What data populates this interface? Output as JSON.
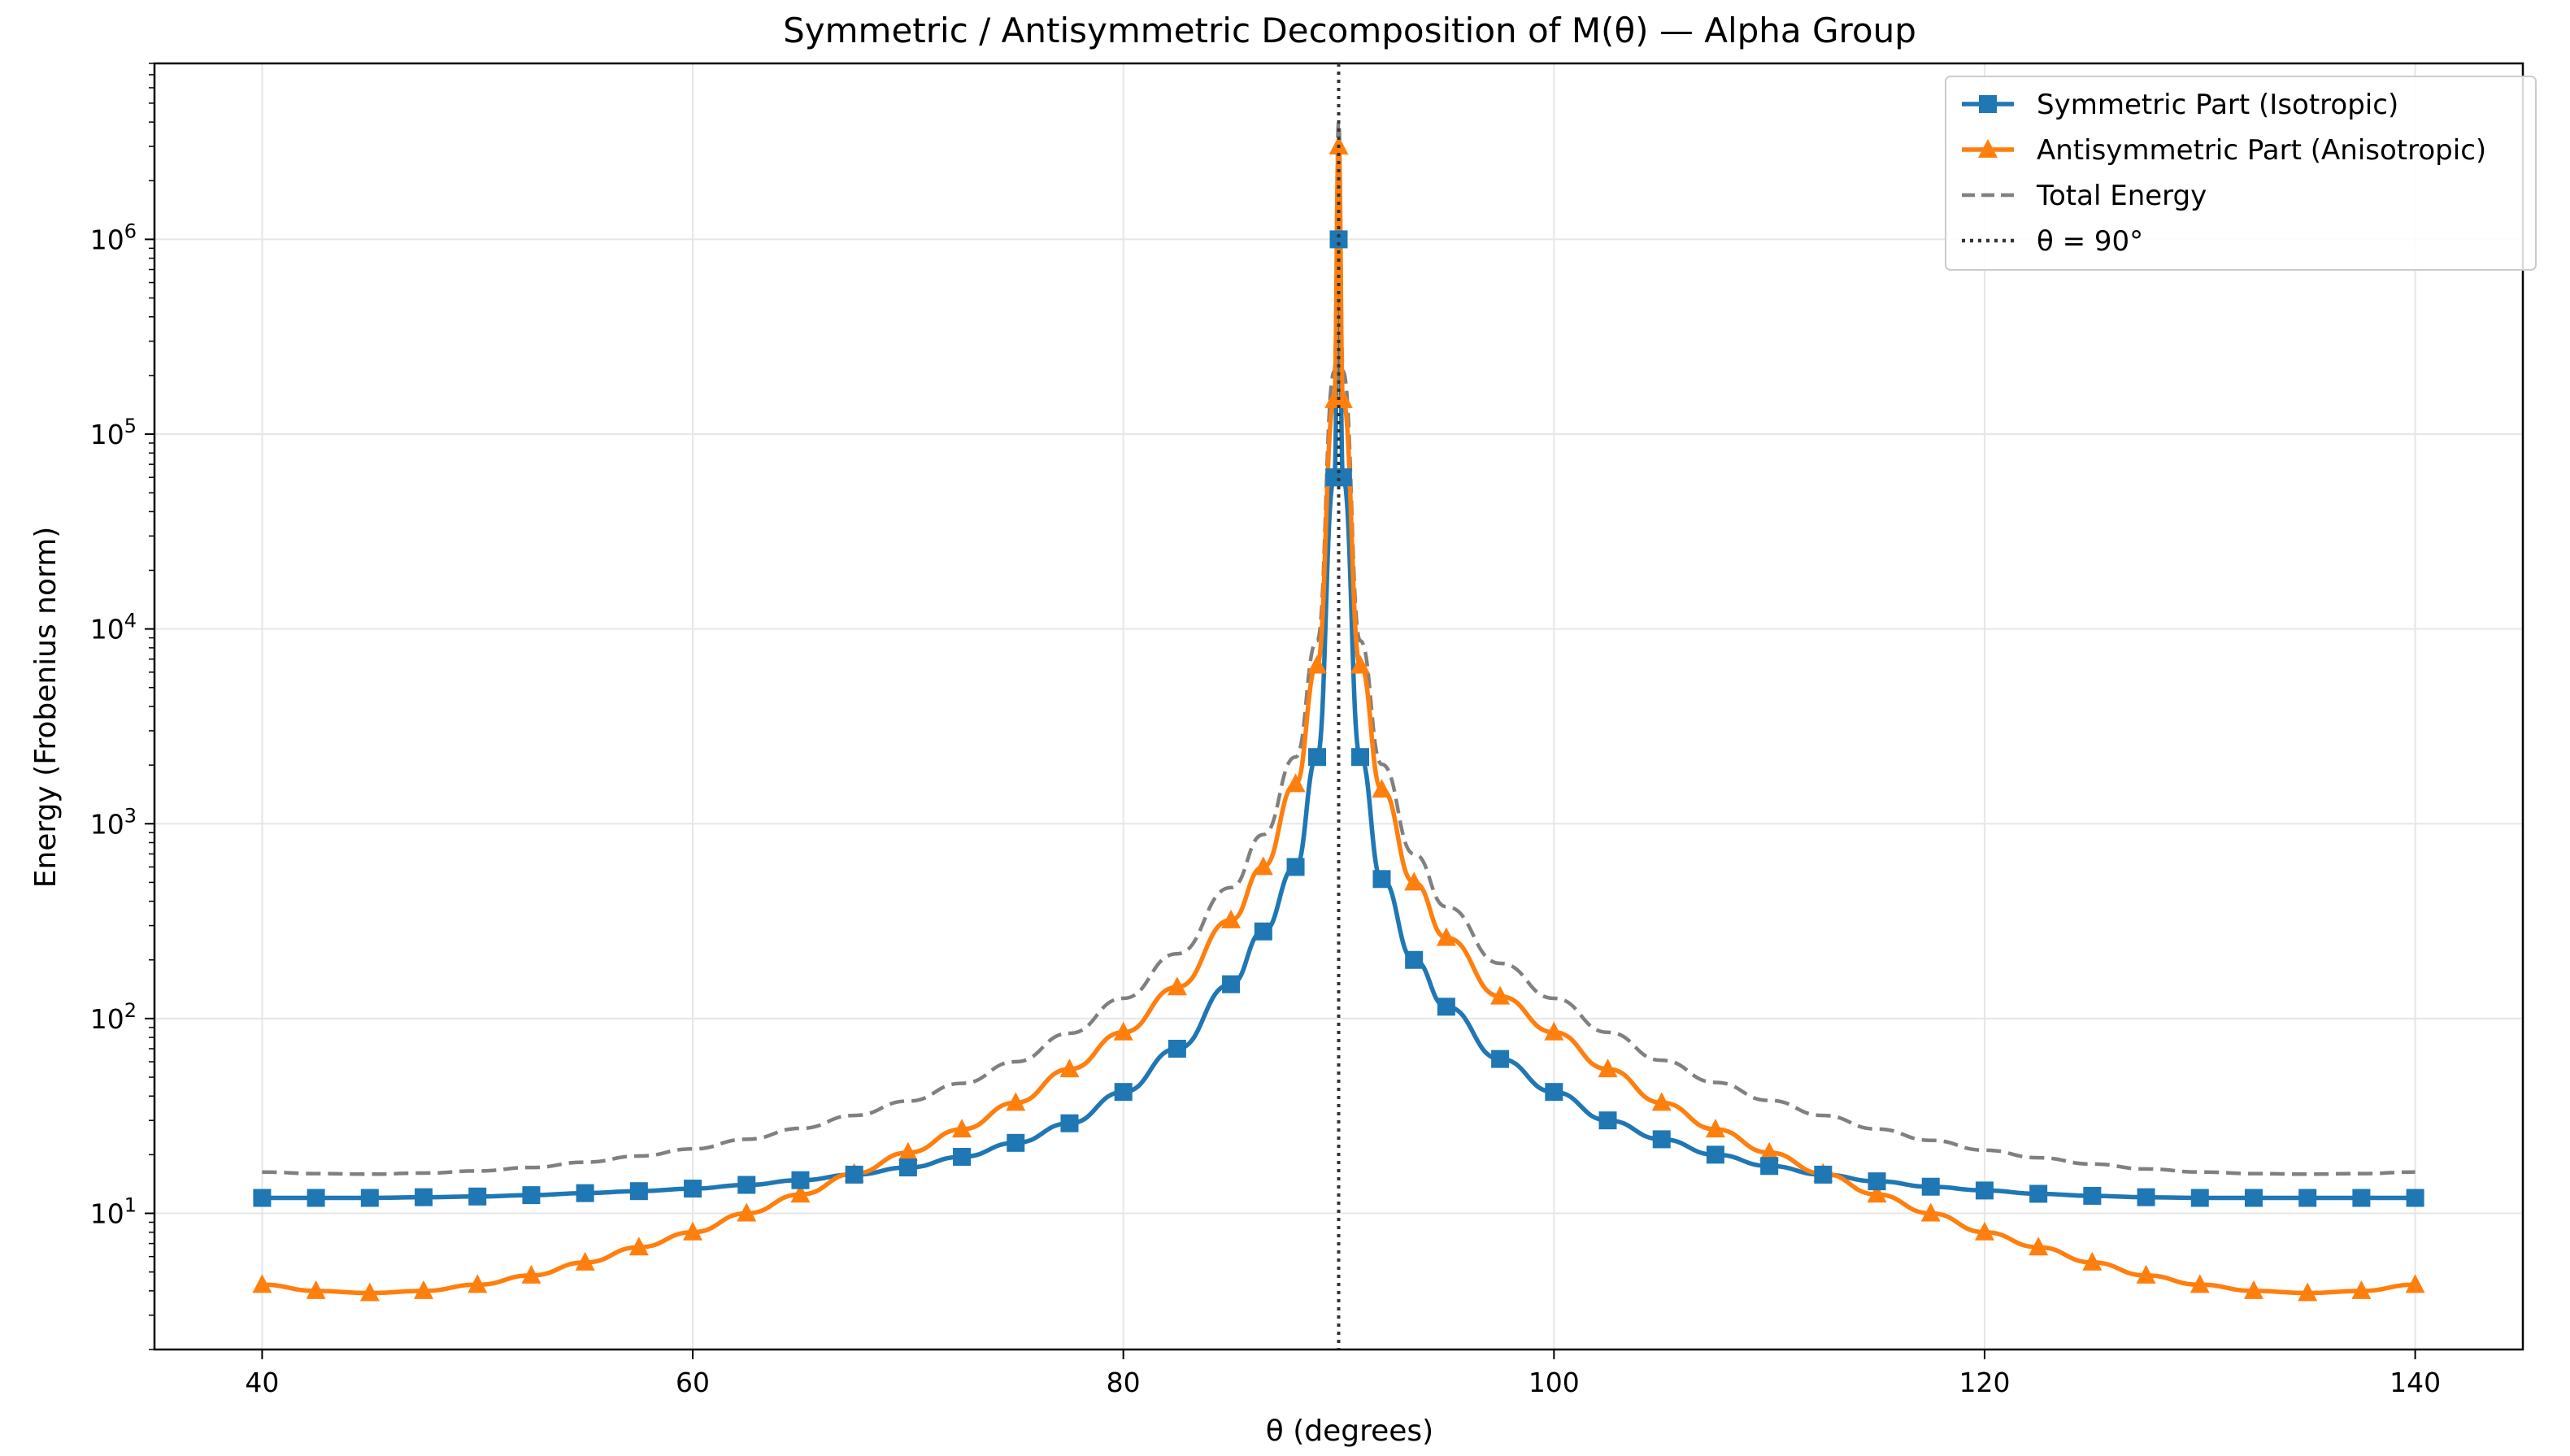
{
  "chart_data": {
    "type": "line",
    "title": "Symmetric / Antisymmetric Decomposition of M(θ) — Alpha Group",
    "xlabel": "θ (degrees)",
    "ylabel": "Energy (Frobenius norm)",
    "xlim": [
      35,
      145
    ],
    "ylim": [
      2,
      8000000
    ],
    "y_scale": "log",
    "grid": true,
    "legend_position": "top-right",
    "x_ticks": [
      40,
      60,
      80,
      100,
      120,
      140
    ],
    "y_ticks": [
      {
        "value": 10,
        "base": "10",
        "exp": "1"
      },
      {
        "value": 100,
        "base": "10",
        "exp": "2"
      },
      {
        "value": 1000,
        "base": "10",
        "exp": "3"
      },
      {
        "value": 10000,
        "base": "10",
        "exp": "4"
      },
      {
        "value": 100000,
        "base": "10",
        "exp": "5"
      },
      {
        "value": 1000000,
        "base": "10",
        "exp": "6"
      }
    ],
    "x": [
      40,
      42.5,
      45,
      47.5,
      50,
      52.5,
      55,
      57.5,
      60,
      62.5,
      65,
      67.5,
      70,
      72.5,
      75,
      77.5,
      80,
      82.5,
      85,
      86.5,
      88,
      89,
      89.8,
      90,
      90.2,
      91,
      92,
      93.5,
      95,
      97.5,
      100,
      102.5,
      105,
      107.5,
      110,
      112.5,
      115,
      117.5,
      120,
      122.5,
      125,
      127.5,
      130,
      132.5,
      135,
      137.5,
      140
    ],
    "series": [
      {
        "name": "Symmetric Part (Isotropic)",
        "color": "#1f77b4",
        "marker": "square",
        "values": [
          12.0,
          12.0,
          12.0,
          12.1,
          12.2,
          12.4,
          12.7,
          13.0,
          13.4,
          14.0,
          14.8,
          15.8,
          17.2,
          19.5,
          23.0,
          29.0,
          42.0,
          70.0,
          150.0,
          280.0,
          600.0,
          2200.0,
          60000.0,
          1000000.0,
          60000.0,
          2200.0,
          520.0,
          200.0,
          115.0,
          62.0,
          42.0,
          30.0,
          24.0,
          20.0,
          17.5,
          15.8,
          14.6,
          13.7,
          13.1,
          12.6,
          12.3,
          12.1,
          12.0,
          12.0,
          12.0,
          12.0,
          12.0
        ]
      },
      {
        "name": "Antisymmetric Part (Anisotropic)",
        "color": "#ff7f0e",
        "marker": "triangle",
        "values": [
          4.3,
          4.0,
          3.9,
          4.0,
          4.3,
          4.8,
          5.6,
          6.7,
          8.0,
          10.0,
          12.5,
          16.0,
          20.5,
          27.0,
          37.0,
          55.0,
          85.0,
          145.0,
          320.0,
          600.0,
          1600.0,
          6500.0,
          150000.0,
          3000000.0,
          150000.0,
          6500.0,
          1500.0,
          500.0,
          260.0,
          130.0,
          85.0,
          55.0,
          37.0,
          27.0,
          20.5,
          16.0,
          12.5,
          10.0,
          8.0,
          6.7,
          5.6,
          4.8,
          4.3,
          4.0,
          3.9,
          4.0,
          4.3
        ]
      },
      {
        "name": "Total Energy",
        "color": "#808080",
        "marker": "none",
        "line": "dashed",
        "values": [
          16.3,
          16.0,
          15.9,
          16.1,
          16.5,
          17.2,
          18.3,
          19.7,
          21.4,
          24.0,
          27.3,
          31.8,
          37.7,
          46.5,
          60.0,
          84.0,
          127.0,
          215.0,
          470.0,
          880.0,
          2200.0,
          8700.0,
          210000.0,
          4000000.0,
          210000.0,
          8700.0,
          2020.0,
          700.0,
          375.0,
          192.0,
          127.0,
          85.0,
          61.0,
          47.0,
          38.0,
          31.8,
          27.1,
          23.7,
          21.1,
          19.3,
          17.9,
          16.9,
          16.3,
          16.0,
          15.9,
          16.0,
          16.3
        ]
      }
    ],
    "vline": {
      "x": 90,
      "label_prefix": "θ = 90",
      "label_suffix": "°",
      "color": "#333333"
    },
    "legend": [
      {
        "label": "Symmetric Part (Isotropic)",
        "color": "#1f77b4",
        "style": "solid",
        "marker": "square"
      },
      {
        "label": "Antisymmetric Part (Anisotropic)",
        "color": "#ff7f0e",
        "style": "solid",
        "marker": "triangle"
      },
      {
        "label": "Total Energy",
        "color": "#808080",
        "style": "dashed",
        "marker": "none"
      },
      {
        "label": "θ = 90°",
        "color": "#333333",
        "style": "dotted",
        "marker": "none"
      }
    ]
  }
}
